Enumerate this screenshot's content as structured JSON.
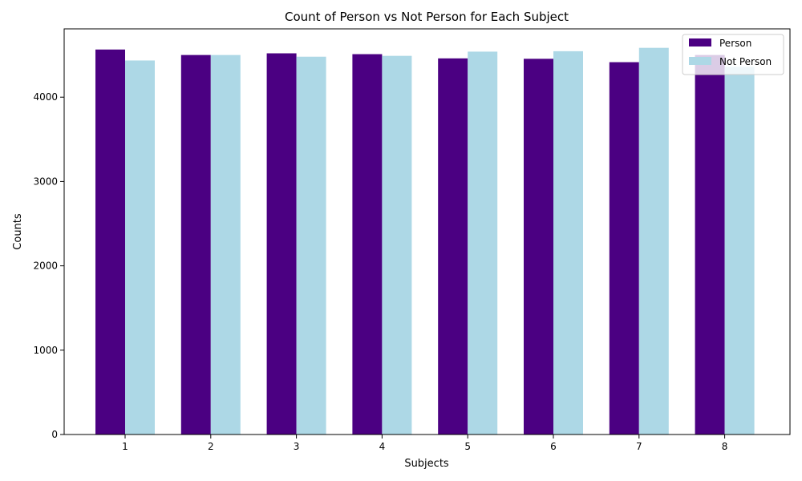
{
  "chart_data": {
    "type": "bar",
    "title": "Count of Person vs Not Person for Each Subject",
    "xlabel": "Subjects",
    "ylabel": "Counts",
    "categories": [
      "1",
      "2",
      "3",
      "4",
      "5",
      "6",
      "7",
      "8"
    ],
    "series": [
      {
        "name": "Person",
        "color": "#4b0082",
        "values": [
          4565,
          4500,
          4520,
          4510,
          4460,
          4455,
          4415,
          4500
        ]
      },
      {
        "name": "Not Person",
        "color": "#add8e6",
        "values": [
          4435,
          4500,
          4480,
          4490,
          4540,
          4545,
          4585,
          4360
        ]
      }
    ],
    "ylim": [
      0,
      4810
    ],
    "yticks": [
      0,
      1000,
      2000,
      3000,
      4000
    ],
    "grid": false,
    "legend_position": "top-right"
  }
}
